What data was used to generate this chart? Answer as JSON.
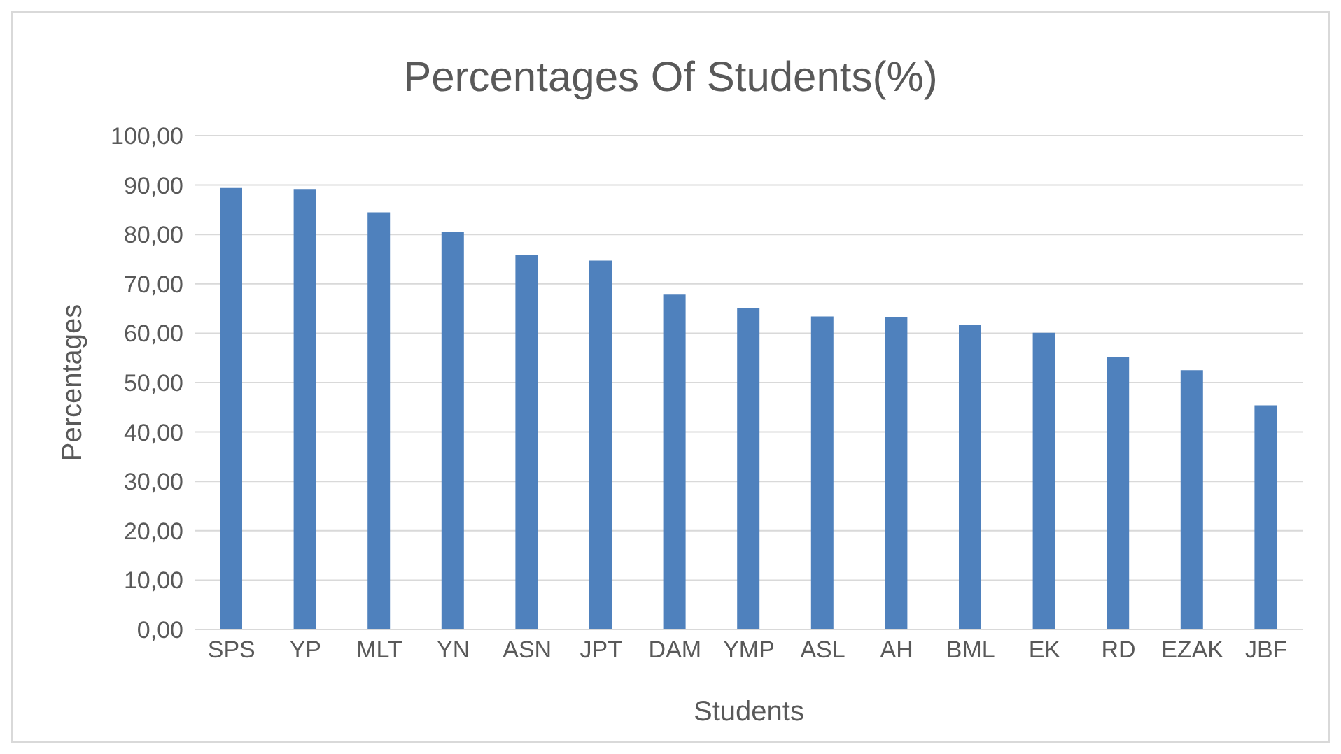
{
  "chart_data": {
    "type": "bar",
    "title": "Percentages Of Students(%)",
    "xlabel": "Students",
    "ylabel": "Percentages",
    "categories": [
      "SPS",
      "YP",
      "MLT",
      "YN",
      "ASN",
      "JPT",
      "DAM",
      "YMP",
      "ASL",
      "AH",
      "BML",
      "EK",
      "RD",
      "EZAK",
      "JBF"
    ],
    "values": [
      89.4,
      89.2,
      84.5,
      80.6,
      75.8,
      74.7,
      67.8,
      65.1,
      63.4,
      63.3,
      61.7,
      60.1,
      55.2,
      52.5,
      45.4
    ],
    "color": "#4f81bd",
    "ylim": [
      0,
      100
    ],
    "yticks": [
      {
        "value": 0,
        "label": "0,00"
      },
      {
        "value": 10,
        "label": "10,00"
      },
      {
        "value": 20,
        "label": "20,00"
      },
      {
        "value": 30,
        "label": "30,00"
      },
      {
        "value": 40,
        "label": "40,00"
      },
      {
        "value": 50,
        "label": "50,00"
      },
      {
        "value": 60,
        "label": "60,00"
      },
      {
        "value": 70,
        "label": "70,00"
      },
      {
        "value": 80,
        "label": "80,00"
      },
      {
        "value": 90,
        "label": "90,00"
      },
      {
        "value": 100,
        "label": "100,00"
      }
    ],
    "grid": "y",
    "legend": false
  }
}
